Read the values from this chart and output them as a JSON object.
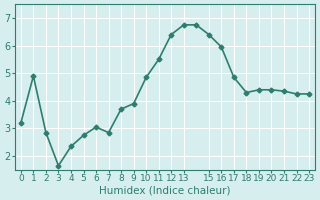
{
  "x": [
    0,
    1,
    2,
    3,
    4,
    5,
    6,
    7,
    8,
    9,
    10,
    11,
    12,
    13,
    14,
    15,
    16,
    17,
    18,
    19,
    20,
    21,
    22,
    23
  ],
  "y": [
    3.2,
    4.9,
    2.85,
    1.65,
    2.35,
    2.75,
    3.05,
    2.85,
    3.7,
    3.9,
    4.85,
    5.5,
    6.4,
    6.75,
    6.75,
    6.4,
    5.95,
    4.85,
    4.3,
    4.4,
    4.4,
    4.35,
    4.25,
    4.25
  ],
  "line_color": "#2e7d6e",
  "bg_color": "#d6eeee",
  "grid_color": "#ffffff",
  "axis_color": "#2e7d6e",
  "xlabel": "Humidex (Indice chaleur)",
  "ylim": [
    1.5,
    7.5
  ],
  "xlim": [
    -0.5,
    23.5
  ],
  "yticks": [
    2,
    3,
    4,
    5,
    6,
    7
  ],
  "xticks": [
    0,
    1,
    2,
    3,
    4,
    5,
    6,
    7,
    8,
    9,
    10,
    11,
    12,
    13,
    15,
    16,
    17,
    18,
    19,
    20,
    21,
    22,
    23
  ],
  "xtick_labels": [
    "0",
    "1",
    "2",
    "3",
    "4",
    "5",
    "6",
    "7",
    "8",
    "9",
    "10",
    "11",
    "12",
    "13",
    "15",
    "16",
    "17",
    "18",
    "19",
    "20",
    "21",
    "22",
    "23"
  ],
  "marker": "D",
  "marker_size": 2.5,
  "line_width": 1.2,
  "font_size": 7,
  "label_fontsize": 7.5
}
